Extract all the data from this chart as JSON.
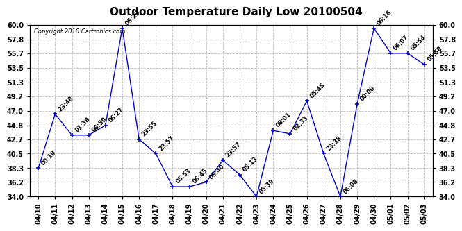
{
  "title": "Outdoor Temperature Daily Low 20100504",
  "copyright": "Copyright 2010 Cartronics.com",
  "dates": [
    "04/10",
    "04/11",
    "04/12",
    "04/13",
    "04/14",
    "04/15",
    "04/16",
    "04/17",
    "04/18",
    "04/19",
    "04/20",
    "04/21",
    "04/22",
    "04/23",
    "04/24",
    "04/25",
    "04/26",
    "04/27",
    "04/28",
    "04/29",
    "04/30",
    "05/01",
    "05/02",
    "05/03"
  ],
  "values": [
    38.3,
    46.5,
    43.3,
    43.3,
    44.8,
    59.5,
    42.7,
    40.5,
    35.5,
    35.5,
    36.2,
    39.5,
    37.3,
    34.0,
    44.0,
    43.5,
    48.5,
    40.5,
    34.0,
    48.0,
    59.5,
    55.7,
    55.7,
    54.0
  ],
  "point_labels": [
    "00:19",
    "23:48",
    "01:38",
    "06:50",
    "06:27",
    "06:23",
    "23:55",
    "23:57",
    "05:53",
    "06:45",
    "06:40",
    "23:57",
    "05:13",
    "05:39",
    "08:01",
    "02:33",
    "05:45",
    "23:38",
    "06:08",
    "00:00",
    "06:16",
    "06:07",
    "05:54",
    "05:58"
  ],
  "ylim": [
    34.0,
    60.0
  ],
  "yticks": [
    34.0,
    36.2,
    38.3,
    40.5,
    42.7,
    44.8,
    47.0,
    49.2,
    51.3,
    53.5,
    55.7,
    57.8,
    60.0
  ],
  "line_color": "#0000cc",
  "marker_color": "#0000cc",
  "bg_color": "#ffffff",
  "grid_color": "#bbbbbb",
  "title_fontsize": 11,
  "label_fontsize": 6,
  "tick_fontsize": 7,
  "copyright_fontsize": 6
}
